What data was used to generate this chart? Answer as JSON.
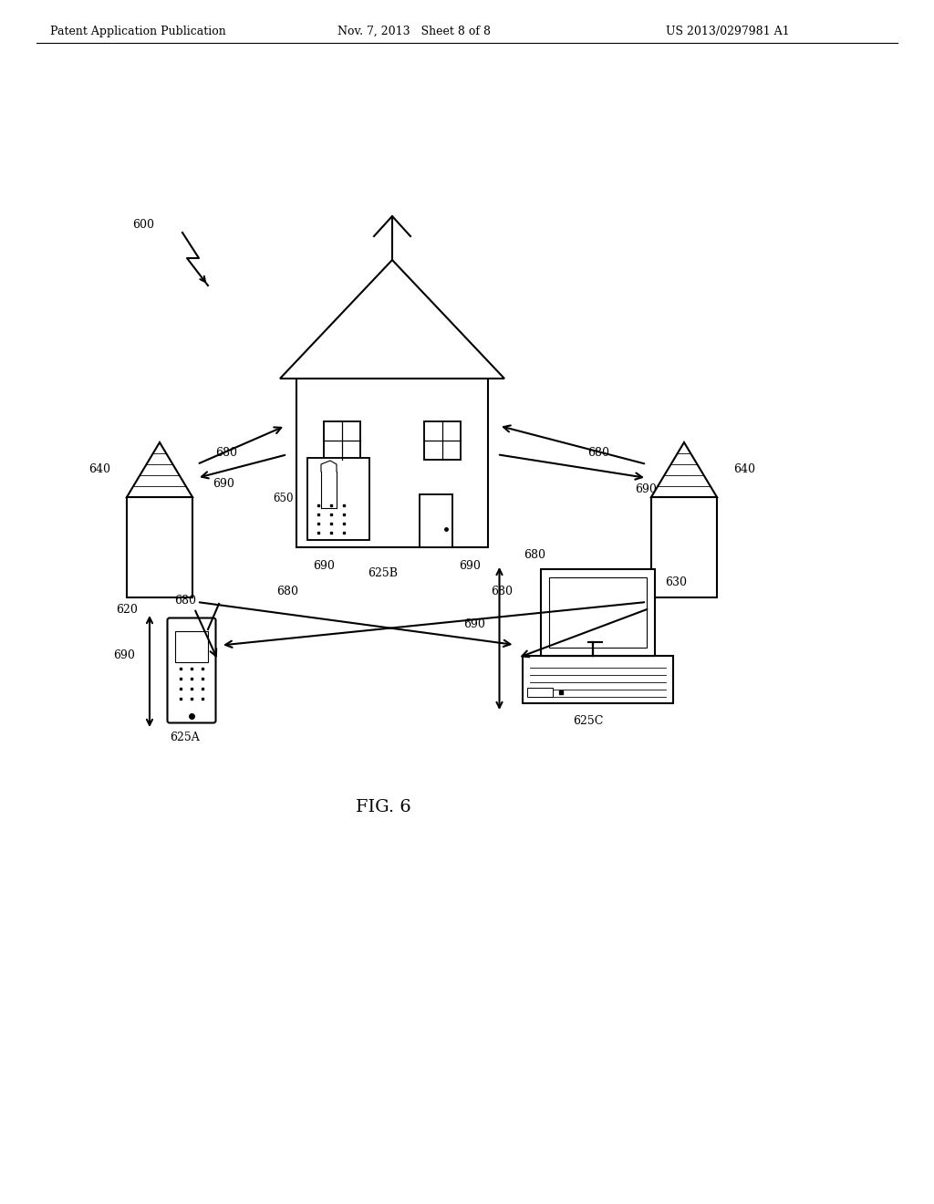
{
  "bg_color": "#ffffff",
  "header_left": "Patent Application Publication",
  "header_mid": "Nov. 7, 2013   Sheet 8 of 8",
  "header_right": "US 2013/0297981 A1",
  "fig_label": "FIG. 6",
  "label_600": "600",
  "label_620": "620",
  "label_625A": "625A",
  "label_625B": "625B",
  "label_625C": "625C",
  "label_630": "630",
  "label_640": "640",
  "label_650": "650",
  "label_680": "680",
  "label_690": "690",
  "line_color": "#000000",
  "line_width": 1.5
}
